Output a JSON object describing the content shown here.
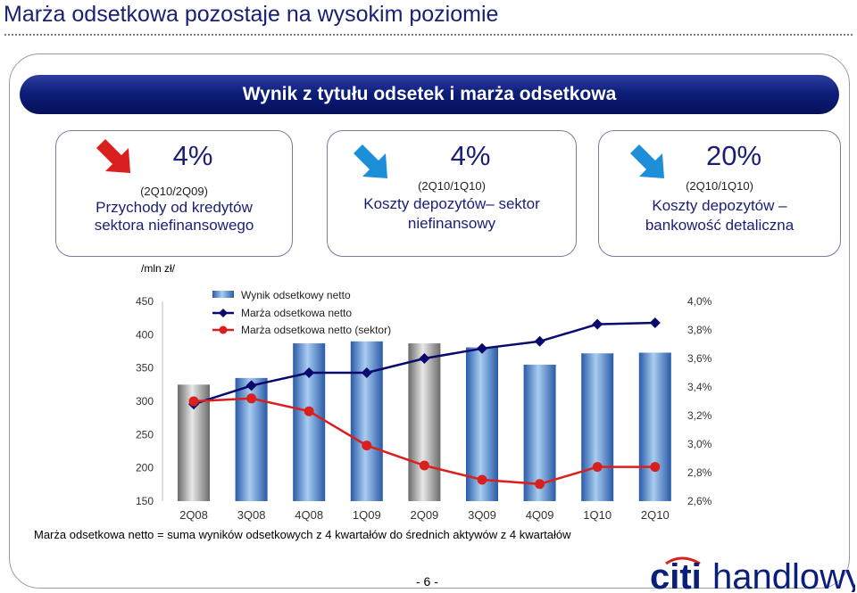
{
  "page_title": "Marża odsetkowa pozostaje na wysokim poziomie",
  "banner": "Wynik z tytułu odsetek i marża odsetkowa",
  "cards": [
    {
      "pct": "4%",
      "period": "(2Q10/2Q09)",
      "line1": "Przychody od kredytów",
      "line2": "sektora niefinansowego",
      "color": "#1a1f73",
      "arrow_color": "#d9201f"
    },
    {
      "pct": "4%",
      "period": "(2Q10/1Q10)",
      "line1": "Koszty depozytów– sektor",
      "line2": "niefinansowy",
      "color": "#1a1f73",
      "arrow_color": "#1c8fd8"
    },
    {
      "pct": "20%",
      "period": "(2Q10/1Q10)",
      "line1": "Koszty depozytów –",
      "line2": "bankowość detaliczna",
      "color": "#1a1f73",
      "arrow_color": "#1c8fd8"
    }
  ],
  "unit_label": "/mln zł/",
  "footnote": "Marża odsetkowa netto = suma wyników odsetkowych z 4 kwartałów do średnich aktywów z 4 kwartałów",
  "page_number": "- 6 -",
  "logo": {
    "left": "citi",
    "right": "handlowy"
  },
  "chart_data": {
    "type": "bar",
    "categories": [
      "2Q08",
      "3Q08",
      "4Q08",
      "1Q09",
      "2Q09",
      "3Q09",
      "4Q09",
      "1Q10",
      "2Q10"
    ],
    "left_axis": {
      "ylim": [
        150,
        450
      ],
      "ticks": [
        "150",
        "200",
        "250",
        "300",
        "350",
        "400",
        "450"
      ]
    },
    "right_axis": {
      "ylim": [
        2.6,
        4.0
      ],
      "ticks": [
        "2,6%",
        "2,8%",
        "3,0%",
        "3,2%",
        "3,4%",
        "3,6%",
        "3,8%",
        "4,0%"
      ]
    },
    "legend_position": "top-left",
    "series": [
      {
        "name": "Wynik odsetkowy netto",
        "kind": "bar",
        "axis": "left",
        "values": [
          325,
          335,
          387,
          390,
          387,
          381,
          355,
          372,
          373
        ]
      },
      {
        "name": "Marża odsetkowa netto",
        "kind": "line",
        "axis": "right",
        "color": "#0a0a6e",
        "values": [
          3.28,
          3.41,
          3.5,
          3.5,
          3.6,
          3.67,
          3.72,
          3.84,
          3.85
        ]
      },
      {
        "name": "Marża odsetkowa netto (sektor)",
        "kind": "line",
        "axis": "right",
        "color": "#d9201f",
        "values": [
          3.3,
          3.32,
          3.23,
          2.99,
          2.85,
          2.75,
          2.72,
          2.84,
          2.84
        ]
      }
    ]
  }
}
